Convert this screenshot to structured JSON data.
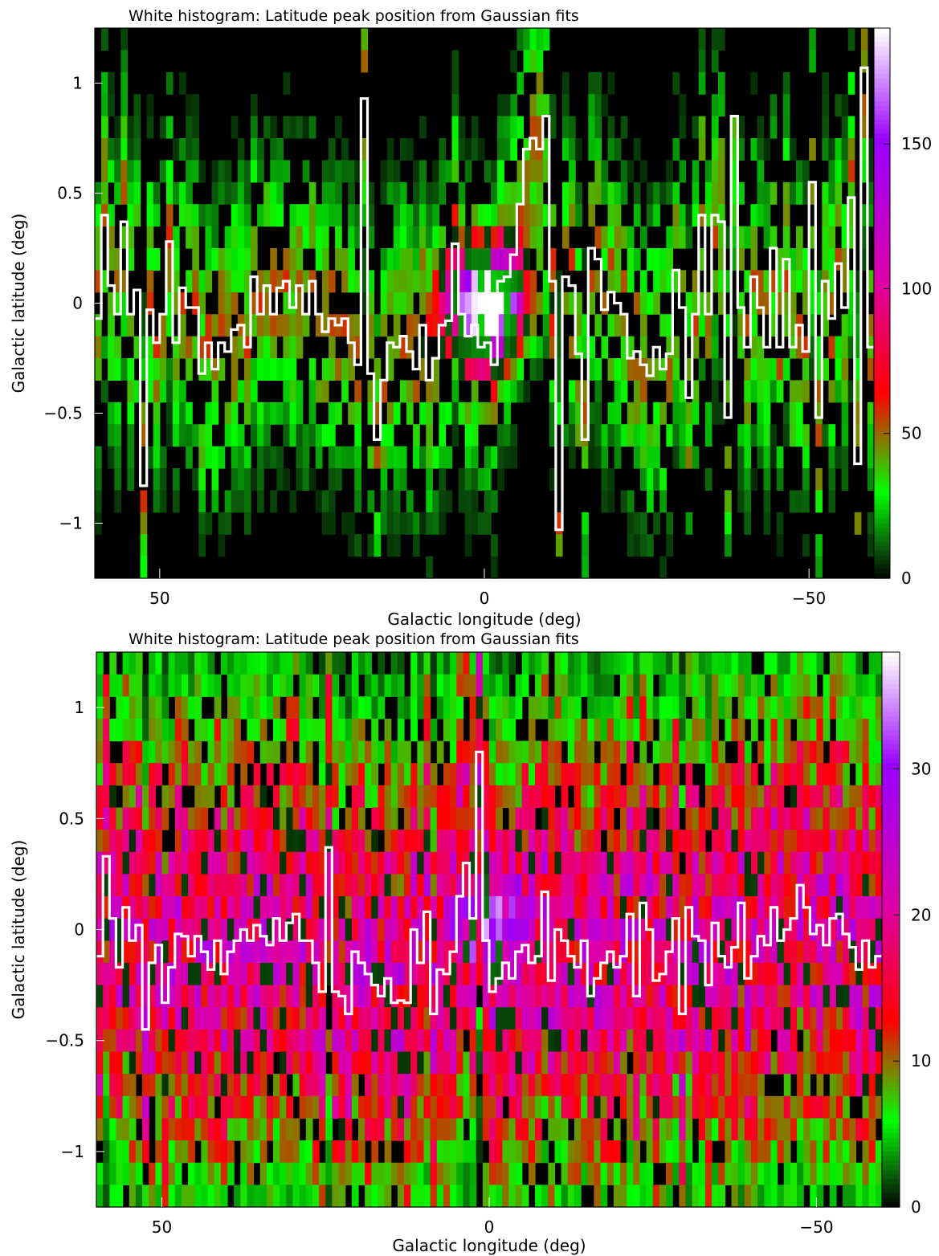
{
  "chart_data": [
    {
      "type": "heatmap",
      "title": "White histogram: Latitude peak position from Gaussian fits",
      "xlabel": "Galactic longitude (deg)",
      "ylabel": "Galactic latitude (deg)",
      "xlim": [
        60,
        -60
      ],
      "ylim": [
        -1.25,
        1.25
      ],
      "xticks": [
        50,
        0,
        -50
      ],
      "xtick_labels": [
        "50",
        "0",
        "−50"
      ],
      "yticks": [
        1,
        0.5,
        0,
        -0.5,
        -1
      ],
      "ytick_labels": [
        "1",
        "0.5",
        "0",
        "−0.5",
        "−1"
      ],
      "colorbar": {
        "range": [
          0,
          190
        ],
        "ticks": [
          0,
          50,
          100,
          150
        ],
        "tick_labels": [
          "0",
          "50",
          "100",
          "150"
        ]
      },
      "grid": false,
      "colormap": [
        "#000000",
        "#0a5a0a",
        "#00ff00",
        "#ff0000",
        "#dd00aa",
        "#9900ff",
        "#ffffff"
      ],
      "line_color": "#ffffff",
      "series": [
        {
          "x": [
            60.0,
            59.0,
            58.0,
            57.0,
            56.0,
            55.0,
            54.0,
            53.0,
            52.0,
            51.0,
            50.0,
            49.0,
            48.0,
            47.0,
            46.0,
            45.0,
            44.0,
            43.0,
            42.0,
            41.0,
            40.0,
            39.0,
            38.0,
            37.0,
            36.0,
            35.0,
            34.0,
            33.0,
            32.0,
            31.0,
            30.0,
            29.0,
            28.0,
            27.0,
            26.0,
            25.0,
            24.0,
            23.0,
            22.0,
            21.0,
            20.0,
            19.0,
            18.0,
            17.0,
            16.0,
            15.0,
            14.0,
            13.0,
            12.0,
            11.0,
            10.0,
            9.0,
            8.0,
            7.0,
            6.0,
            5.0,
            4.0,
            3.0,
            2.0,
            1.0,
            0.0,
            -1.0,
            -2.0,
            -3.0,
            -4.0,
            -5.0,
            -6.0,
            -7.0,
            -8.0,
            -9.0,
            -10.0,
            -11.0,
            -12.0,
            -13.0,
            -14.0,
            -15.0,
            -16.0,
            -17.0,
            -18.0,
            -19.0,
            -20.0,
            -21.0,
            -22.0,
            -23.0,
            -24.0,
            -25.0,
            -26.0,
            -27.0,
            -28.0,
            -29.0,
            -30.0,
            -31.0,
            -32.0,
            -33.0,
            -34.0,
            -35.0,
            -36.0,
            -37.0,
            -38.0,
            -39.0,
            -40.0,
            -41.0,
            -42.0,
            -43.0,
            -44.0,
            -45.0,
            -46.0,
            -47.0,
            -48.0,
            -49.0,
            -50.0,
            -51.0,
            -52.0,
            -53.0,
            -54.0,
            -55.0,
            -56.0,
            -57.0,
            -58.0,
            -59.0
          ],
          "y": [
            -0.07,
            0.4,
            0.08,
            -0.05,
            0.37,
            -0.05,
            0.06,
            -0.83,
            -0.03,
            -0.18,
            -0.05,
            0.28,
            -0.18,
            0.07,
            -0.02,
            -0.02,
            -0.32,
            -0.18,
            -0.3,
            -0.18,
            -0.22,
            -0.12,
            -0.1,
            -0.2,
            0.12,
            -0.05,
            0.08,
            -0.05,
            0.07,
            0.1,
            -0.02,
            0.08,
            -0.05,
            0.1,
            -0.05,
            -0.13,
            -0.07,
            -0.1,
            -0.07,
            -0.18,
            -0.28,
            0.93,
            -0.32,
            -0.62,
            -0.35,
            -0.18,
            -0.2,
            -0.15,
            -0.22,
            -0.3,
            -0.1,
            -0.35,
            -0.25,
            -0.1,
            -0.08,
            0.27,
            -0.05,
            -0.15,
            -0.1,
            -0.2,
            -0.18,
            -0.28,
            0.1,
            0.12,
            0.22,
            0.45,
            0.7,
            0.75,
            0.7,
            0.85,
            0.1,
            -1.03,
            0.12,
            0.08,
            -0.23,
            -0.62,
            0.25,
            0.2,
            -0.03,
            0.05,
            0.0,
            -0.05,
            -0.25,
            -0.22,
            -0.28,
            -0.33,
            -0.2,
            -0.3,
            -0.23,
            0.15,
            -0.02,
            -0.43,
            -0.05,
            0.4,
            -0.05,
            0.4,
            0.37,
            -0.52,
            0.85,
            -0.02,
            -0.2,
            0.12,
            -0.02,
            -0.2,
            0.25,
            -0.2,
            0.2,
            -0.2,
            -0.1,
            -0.22,
            0.55,
            -0.52,
            0.1,
            -0.07,
            0.18,
            -0.02,
            0.48,
            -0.73,
            1.07,
            -0.2
          ]
        }
      ]
    },
    {
      "type": "heatmap",
      "title": "White histogram: Latitude peak position from Gaussian fits",
      "xlabel": "Galactic longitude (deg)",
      "ylabel": "Galactic latitude (deg)",
      "xlim": [
        60,
        -60
      ],
      "ylim": [
        -1.25,
        1.25
      ],
      "xticks": [
        50,
        0,
        -50
      ],
      "xtick_labels": [
        "50",
        "0",
        "−50"
      ],
      "yticks": [
        1,
        0.5,
        0,
        -0.5,
        -1
      ],
      "ytick_labels": [
        "1",
        "0.5",
        "0",
        "−0.5",
        "−1"
      ],
      "colorbar": {
        "range": [
          0,
          38
        ],
        "ticks": [
          0,
          10,
          20,
          30
        ],
        "tick_labels": [
          "0",
          "10",
          "20",
          "30"
        ]
      },
      "grid": false,
      "colormap": [
        "#000000",
        "#0a5a0a",
        "#00ff00",
        "#ff0000",
        "#dd00aa",
        "#9900ff",
        "#ffffff"
      ],
      "line_color": "#ffffff",
      "series": [
        {
          "x": [
            60.0,
            59.0,
            58.0,
            57.0,
            56.0,
            55.0,
            54.0,
            53.0,
            52.0,
            51.0,
            50.0,
            49.0,
            48.0,
            47.0,
            46.0,
            45.0,
            44.0,
            43.0,
            42.0,
            41.0,
            40.0,
            39.0,
            38.0,
            37.0,
            36.0,
            35.0,
            34.0,
            33.0,
            32.0,
            31.0,
            30.0,
            29.0,
            28.0,
            27.0,
            26.0,
            25.0,
            24.0,
            23.0,
            22.0,
            21.0,
            20.0,
            19.0,
            18.0,
            17.0,
            16.0,
            15.0,
            14.0,
            13.0,
            12.0,
            11.0,
            10.0,
            9.0,
            8.0,
            7.0,
            6.0,
            5.0,
            4.0,
            3.0,
            2.0,
            1.0,
            0.0,
            -1.0,
            -2.0,
            -3.0,
            -4.0,
            -5.0,
            -6.0,
            -7.0,
            -8.0,
            -9.0,
            -10.0,
            -11.0,
            -12.0,
            -13.0,
            -14.0,
            -15.0,
            -16.0,
            -17.0,
            -18.0,
            -19.0,
            -20.0,
            -21.0,
            -22.0,
            -23.0,
            -24.0,
            -25.0,
            -26.0,
            -27.0,
            -28.0,
            -29.0,
            -30.0,
            -31.0,
            -32.0,
            -33.0,
            -34.0,
            -35.0,
            -36.0,
            -37.0,
            -38.0,
            -39.0,
            -40.0,
            -41.0,
            -42.0,
            -43.0,
            -44.0,
            -45.0,
            -46.0,
            -47.0,
            -48.0,
            -49.0,
            -50.0,
            -51.0,
            -52.0,
            -53.0,
            -54.0,
            -55.0,
            -56.0,
            -57.0,
            -58.0,
            -59.0
          ],
          "y": [
            -0.12,
            0.33,
            0.05,
            -0.17,
            0.1,
            -0.05,
            0.02,
            -0.45,
            -0.15,
            -0.07,
            -0.33,
            -0.17,
            -0.02,
            -0.03,
            -0.12,
            -0.03,
            -0.1,
            -0.18,
            -0.05,
            -0.2,
            -0.1,
            -0.05,
            0.0,
            -0.05,
            0.02,
            -0.03,
            -0.07,
            0.05,
            -0.05,
            0.03,
            0.07,
            -0.05,
            -0.05,
            -0.15,
            -0.28,
            0.37,
            -0.28,
            -0.3,
            -0.38,
            -0.1,
            -0.15,
            -0.2,
            -0.25,
            -0.3,
            -0.22,
            -0.33,
            -0.32,
            -0.33,
            0.0,
            -0.15,
            0.08,
            -0.38,
            -0.18,
            -0.2,
            -0.1,
            0.15,
            0.3,
            0.05,
            0.8,
            -0.05,
            -0.28,
            -0.22,
            -0.15,
            -0.22,
            -0.1,
            -0.07,
            -0.15,
            -0.12,
            0.17,
            -0.23,
            0.0,
            -0.05,
            -0.12,
            -0.17,
            -0.05,
            -0.3,
            -0.22,
            -0.15,
            -0.1,
            -0.17,
            -0.12,
            0.07,
            -0.3,
            0.12,
            0.0,
            -0.23,
            -0.2,
            -0.1,
            0.05,
            -0.38,
            0.1,
            -0.03,
            -0.05,
            -0.25,
            0.03,
            -0.12,
            -0.17,
            -0.08,
            0.12,
            -0.22,
            -0.12,
            -0.03,
            -0.07,
            0.1,
            -0.05,
            0.0,
            0.05,
            0.2,
            0.1,
            -0.02,
            0.02,
            -0.07,
            0.05,
            0.07,
            -0.02,
            -0.08,
            -0.18,
            -0.05,
            -0.17,
            -0.12
          ]
        }
      ]
    }
  ]
}
